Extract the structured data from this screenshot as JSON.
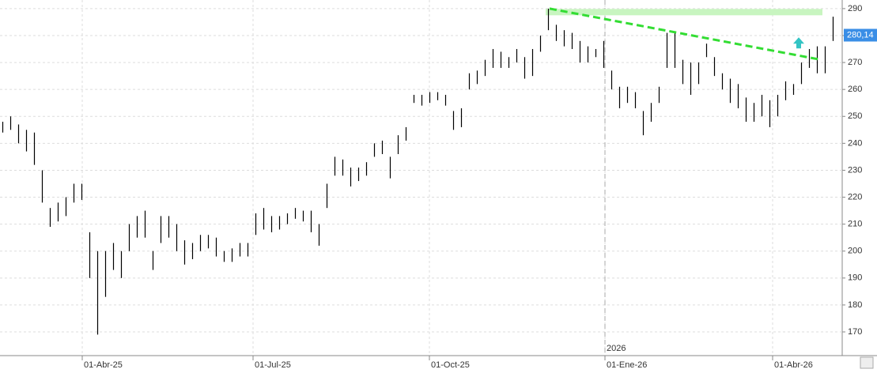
{
  "chart_data": {
    "type": "ohlc",
    "x": [
      0,
      1,
      2,
      3,
      4,
      5,
      6,
      7,
      8,
      9,
      10,
      11,
      12,
      13,
      14,
      15,
      16,
      17,
      18,
      19,
      20,
      21,
      22,
      23,
      24,
      25,
      26,
      27,
      28,
      29,
      30,
      31,
      32,
      33,
      34,
      35,
      36,
      37,
      38,
      39,
      40,
      41,
      42,
      43,
      44,
      45,
      46,
      47,
      48,
      49,
      50,
      51,
      52,
      53,
      54,
      55,
      56,
      57,
      58,
      59,
      60,
      61,
      62,
      63,
      64,
      65,
      66,
      67,
      68,
      69,
      70,
      71,
      72,
      73,
      74,
      75,
      76,
      77,
      78,
      79,
      80,
      81,
      82,
      83,
      84,
      85,
      86,
      87,
      88,
      89,
      90,
      91,
      92,
      93,
      94,
      95,
      96,
      97,
      98,
      99,
      100,
      101,
      102,
      103,
      104,
      105
    ],
    "low": [
      244,
      245,
      240,
      237,
      232,
      218,
      209,
      211,
      213,
      218,
      219,
      190,
      169,
      183,
      193,
      190,
      200,
      205,
      205,
      193,
      203,
      205,
      200,
      195,
      197,
      200,
      201,
      198,
      196,
      196,
      198,
      198,
      206,
      208,
      207,
      208,
      210,
      212,
      211,
      207,
      202,
      216,
      228,
      228,
      224,
      226,
      228,
      235,
      236,
      227,
      236,
      241,
      255,
      254,
      255,
      256,
      254,
      245,
      246,
      260,
      262,
      265,
      268,
      268,
      268,
      270,
      264,
      265,
      274,
      282,
      278,
      276,
      275,
      270,
      270,
      272,
      268,
      260,
      253,
      255,
      253,
      243,
      248,
      255,
      268,
      268,
      262,
      258,
      262,
      272,
      265,
      260,
      255,
      253,
      248,
      248,
      250,
      246,
      250,
      256,
      258,
      262,
      268,
      266,
      266,
      278
    ],
    "high": [
      248,
      250,
      247,
      245,
      244,
      230,
      216,
      218,
      220,
      225,
      225,
      207,
      200,
      200,
      203,
      200,
      210,
      213,
      215,
      200,
      213,
      213,
      210,
      204,
      203,
      206,
      206,
      205,
      200,
      201,
      203,
      203,
      214,
      216,
      213,
      213,
      214,
      216,
      215,
      215,
      210,
      225,
      235,
      234,
      231,
      231,
      233,
      240,
      241,
      235,
      243,
      246,
      258,
      258,
      259,
      259,
      258,
      252,
      253,
      266,
      267,
      271,
      275,
      274,
      272,
      275,
      272,
      275,
      280,
      290,
      284,
      282,
      281,
      278,
      276,
      275,
      278,
      267,
      261,
      261,
      259,
      252,
      255,
      261,
      281,
      281,
      271,
      270,
      270,
      277,
      272,
      266,
      264,
      262,
      257,
      255,
      258,
      256,
      258,
      263,
      262,
      270,
      275,
      276,
      276,
      287
    ],
    "color": "#000000",
    "xlim": [
      -0.3,
      106.2
    ],
    "xticks": [
      {
        "value": 10.1,
        "label": "01-Abr-25"
      },
      {
        "value": 31.7,
        "label": "01-Jul-25"
      },
      {
        "value": 54,
        "label": "01-Oct-25"
      },
      {
        "value": 76.2,
        "label": "01-Ene-26"
      },
      {
        "value": 97.4,
        "label": "01-Abr-26"
      }
    ],
    "ylim": [
      161.2,
      293.2
    ],
    "yticks": [
      170,
      180,
      190,
      200,
      210,
      220,
      230,
      240,
      250,
      260,
      270,
      280,
      290
    ],
    "grid": true,
    "year_marker": {
      "value": 76.2,
      "label": "2026"
    },
    "last_price": {
      "value": 280.14,
      "label": "280,14",
      "color": "#3a8ee6"
    },
    "trendline": {
      "x": [
        69.2,
        103.2
      ],
      "y": [
        290,
        271.2
      ],
      "color": "#33dd33"
    },
    "resistance": {
      "x": [
        68.7,
        103.7
      ],
      "y": 288.7,
      "color": "#c8f5c0"
    },
    "arrow": {
      "x": 100.7,
      "y": 277,
      "color": "#33c4c4"
    }
  }
}
